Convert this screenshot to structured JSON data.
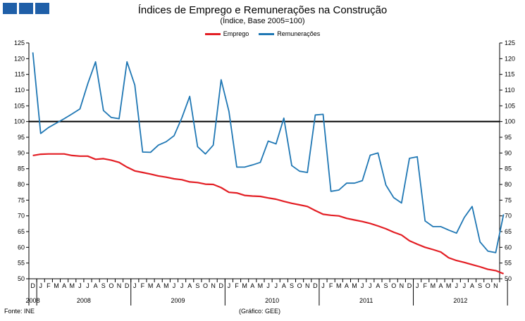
{
  "header": {
    "title": "Índices de Emprego e Remunerações na Construção",
    "subtitle": "(Índice, Base 2005=100)"
  },
  "footer": {
    "source": "Fonte: INE",
    "credit": "(Gráfico: GEE)"
  },
  "colors": {
    "logo": "#1f5fa8"
  },
  "chart_data": {
    "type": "line",
    "ylim": [
      50,
      125
    ],
    "yticks": [
      50,
      55,
      60,
      65,
      70,
      75,
      80,
      85,
      90,
      95,
      100,
      105,
      110,
      115,
      120,
      125
    ],
    "y_axes": "left and right",
    "grid": false,
    "reference_line": 100,
    "legend_position": "top-center",
    "month_labels": [
      "D",
      "J",
      "F",
      "M",
      "A",
      "M",
      "J",
      "J",
      "A",
      "S",
      "O",
      "N",
      "D",
      "J",
      "F",
      "M",
      "A",
      "M",
      "J",
      "J",
      "A",
      "S",
      "O",
      "N",
      "D",
      "J",
      "F",
      "M",
      "A",
      "M",
      "J",
      "J",
      "A",
      "S",
      "O",
      "N",
      "D",
      "J",
      "F",
      "M",
      "A",
      "M",
      "J",
      "J",
      "A",
      "S",
      "O",
      "N",
      "D",
      "J",
      "F",
      "M",
      "A",
      "M",
      "J",
      "J",
      "A",
      "S",
      "O",
      "N"
    ],
    "year_labels": [
      {
        "label": "2008",
        "start": 0,
        "end": 0
      },
      {
        "label": "2008",
        "start": 1,
        "end": 12
      },
      {
        "label": "2009",
        "start": 13,
        "end": 24
      },
      {
        "label": "2010",
        "start": 25,
        "end": 36
      },
      {
        "label": "2011",
        "start": 37,
        "end": 48
      },
      {
        "label": "2012",
        "start": 49,
        "end": 60
      }
    ],
    "series": [
      {
        "name": "Emprego",
        "color": "#e31e24",
        "values": [
          89.2,
          89.6,
          89.7,
          89.7,
          89.7,
          89.2,
          89.0,
          89.0,
          88.0,
          88.2,
          87.7,
          87.0,
          85.5,
          84.3,
          83.8,
          83.3,
          82.7,
          82.3,
          81.8,
          81.5,
          80.8,
          80.6,
          80.1,
          80.0,
          79.0,
          77.5,
          77.3,
          76.5,
          76.3,
          76.2,
          75.7,
          75.3,
          74.6,
          74.0,
          73.5,
          73.0,
          71.7,
          70.5,
          70.2,
          70.0,
          69.2,
          68.7,
          68.2,
          67.6,
          66.8,
          65.9,
          64.8,
          63.9,
          62.1,
          61.0,
          60.0,
          59.3,
          58.5,
          56.7,
          55.8,
          55.2,
          54.5,
          53.8,
          53.0,
          52.6,
          51.6
        ]
      },
      {
        "name": "Remunerações",
        "color": "#1f77b4",
        "values": [
          122.0,
          96.2,
          98.1,
          99.5,
          100.9,
          102.4,
          104.0,
          112.0,
          119.0,
          103.5,
          101.3,
          100.9,
          119.0,
          111.6,
          90.3,
          90.2,
          92.5,
          93.6,
          95.5,
          101.2,
          108.0,
          92.0,
          89.7,
          92.5,
          113.3,
          103.2,
          85.5,
          85.5,
          86.2,
          87.0,
          93.8,
          92.9,
          101.1,
          86.0,
          84.2,
          83.8,
          102.1,
          102.3,
          77.8,
          78.2,
          80.4,
          80.4,
          81.2,
          89.3,
          90.0,
          79.8,
          75.8,
          74.1,
          88.3,
          88.8,
          68.4,
          66.6,
          66.6,
          65.5,
          64.5,
          69.5,
          73.0,
          61.7,
          58.8,
          58.3,
          70.5
        ]
      }
    ]
  }
}
